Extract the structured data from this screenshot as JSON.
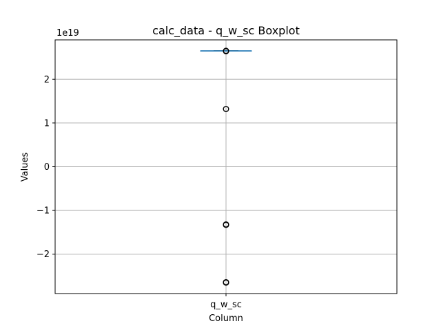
{
  "chart_data": {
    "type": "boxplot",
    "title": "calc_data - q_w_sc Boxplot",
    "xlabel": "Column",
    "ylabel": "Values",
    "offset_text": "1e19",
    "categories": [
      "q_w_sc"
    ],
    "ylim": [
      -2.9,
      2.9
    ],
    "yticks": [
      -2,
      -1,
      0,
      1,
      2
    ],
    "ytick_labels": [
      "−2",
      "−1",
      "0",
      "1",
      "2"
    ],
    "grid": true,
    "box": {
      "q1": 2.65,
      "median": 2.65,
      "q3": 2.65,
      "whisker_low": 2.65,
      "whisker_high": 2.65
    },
    "outliers": [
      2.65,
      2.64,
      1.32,
      -1.32,
      -1.33,
      -2.64,
      -2.65
    ],
    "colors": {
      "box": "#1f77b4",
      "median": "#000000",
      "grid": "#b0b0b0",
      "outlier": "#000000"
    }
  }
}
